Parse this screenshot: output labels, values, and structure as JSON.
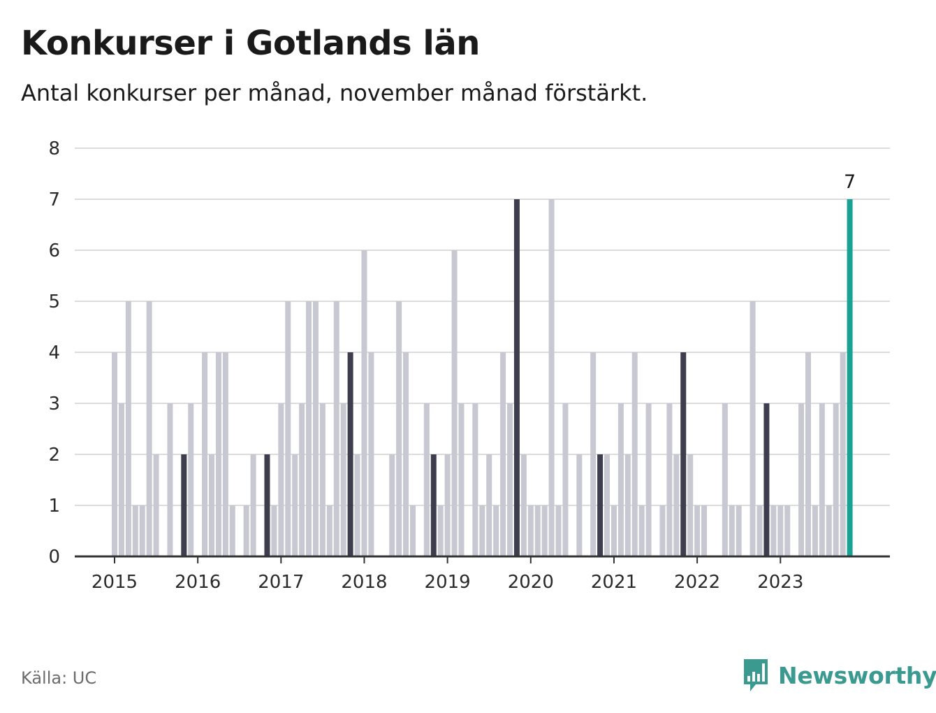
{
  "title": "Konkurser i Gotlands län",
  "subtitle": "Antal konkurser per månad, november månad förstärkt.",
  "source": "Källa: UC",
  "brand": {
    "name": "Newsworthy",
    "icon": "bar-chart-speech-bubble-icon"
  },
  "colors": {
    "normal": "#c8c8d2",
    "november": "#3d3d4e",
    "latest": "#17a294",
    "grid": "#dcdcdc",
    "axis": "#333333"
  },
  "chart_data": {
    "type": "bar",
    "title": "Konkurser i Gotlands län",
    "subtitle": "Antal konkurser per månad, november månad förstärkt.",
    "xlabel": "",
    "ylabel": "",
    "ylim": [
      0,
      8
    ],
    "yticks": [
      "0",
      "1",
      "2",
      "3",
      "4",
      "5",
      "6",
      "7",
      "8"
    ],
    "xticks": [
      "2015",
      "2016",
      "2017",
      "2018",
      "2019",
      "2020",
      "2021",
      "2022",
      "2023"
    ],
    "start": "2015-01",
    "end": "2023-11",
    "grid": true,
    "highlight": "november",
    "latest_label": "7",
    "series": [
      {
        "values": [
          4,
          3,
          5,
          1,
          1,
          5,
          2,
          0,
          3,
          0,
          2,
          3,
          0,
          4,
          2,
          4,
          4,
          1,
          0,
          1,
          2,
          0,
          2,
          1,
          3,
          5,
          2,
          3,
          5,
          5,
          3,
          1,
          5,
          3,
          4,
          2,
          6,
          4,
          0,
          0,
          2,
          5,
          4,
          1,
          0,
          3,
          2,
          1,
          2,
          6,
          3,
          0,
          3,
          1,
          2,
          1,
          4,
          3,
          7,
          2,
          1,
          1,
          1,
          7,
          1,
          3,
          0,
          2,
          0,
          4,
          2,
          2,
          1,
          3,
          2,
          4,
          1,
          3,
          0,
          1,
          3,
          2,
          4,
          2,
          1,
          1,
          0,
          0,
          3,
          1,
          1,
          0,
          5,
          1,
          3,
          1,
          1,
          1,
          0,
          3,
          4,
          1,
          3,
          1,
          3,
          4,
          7
        ]
      }
    ]
  }
}
